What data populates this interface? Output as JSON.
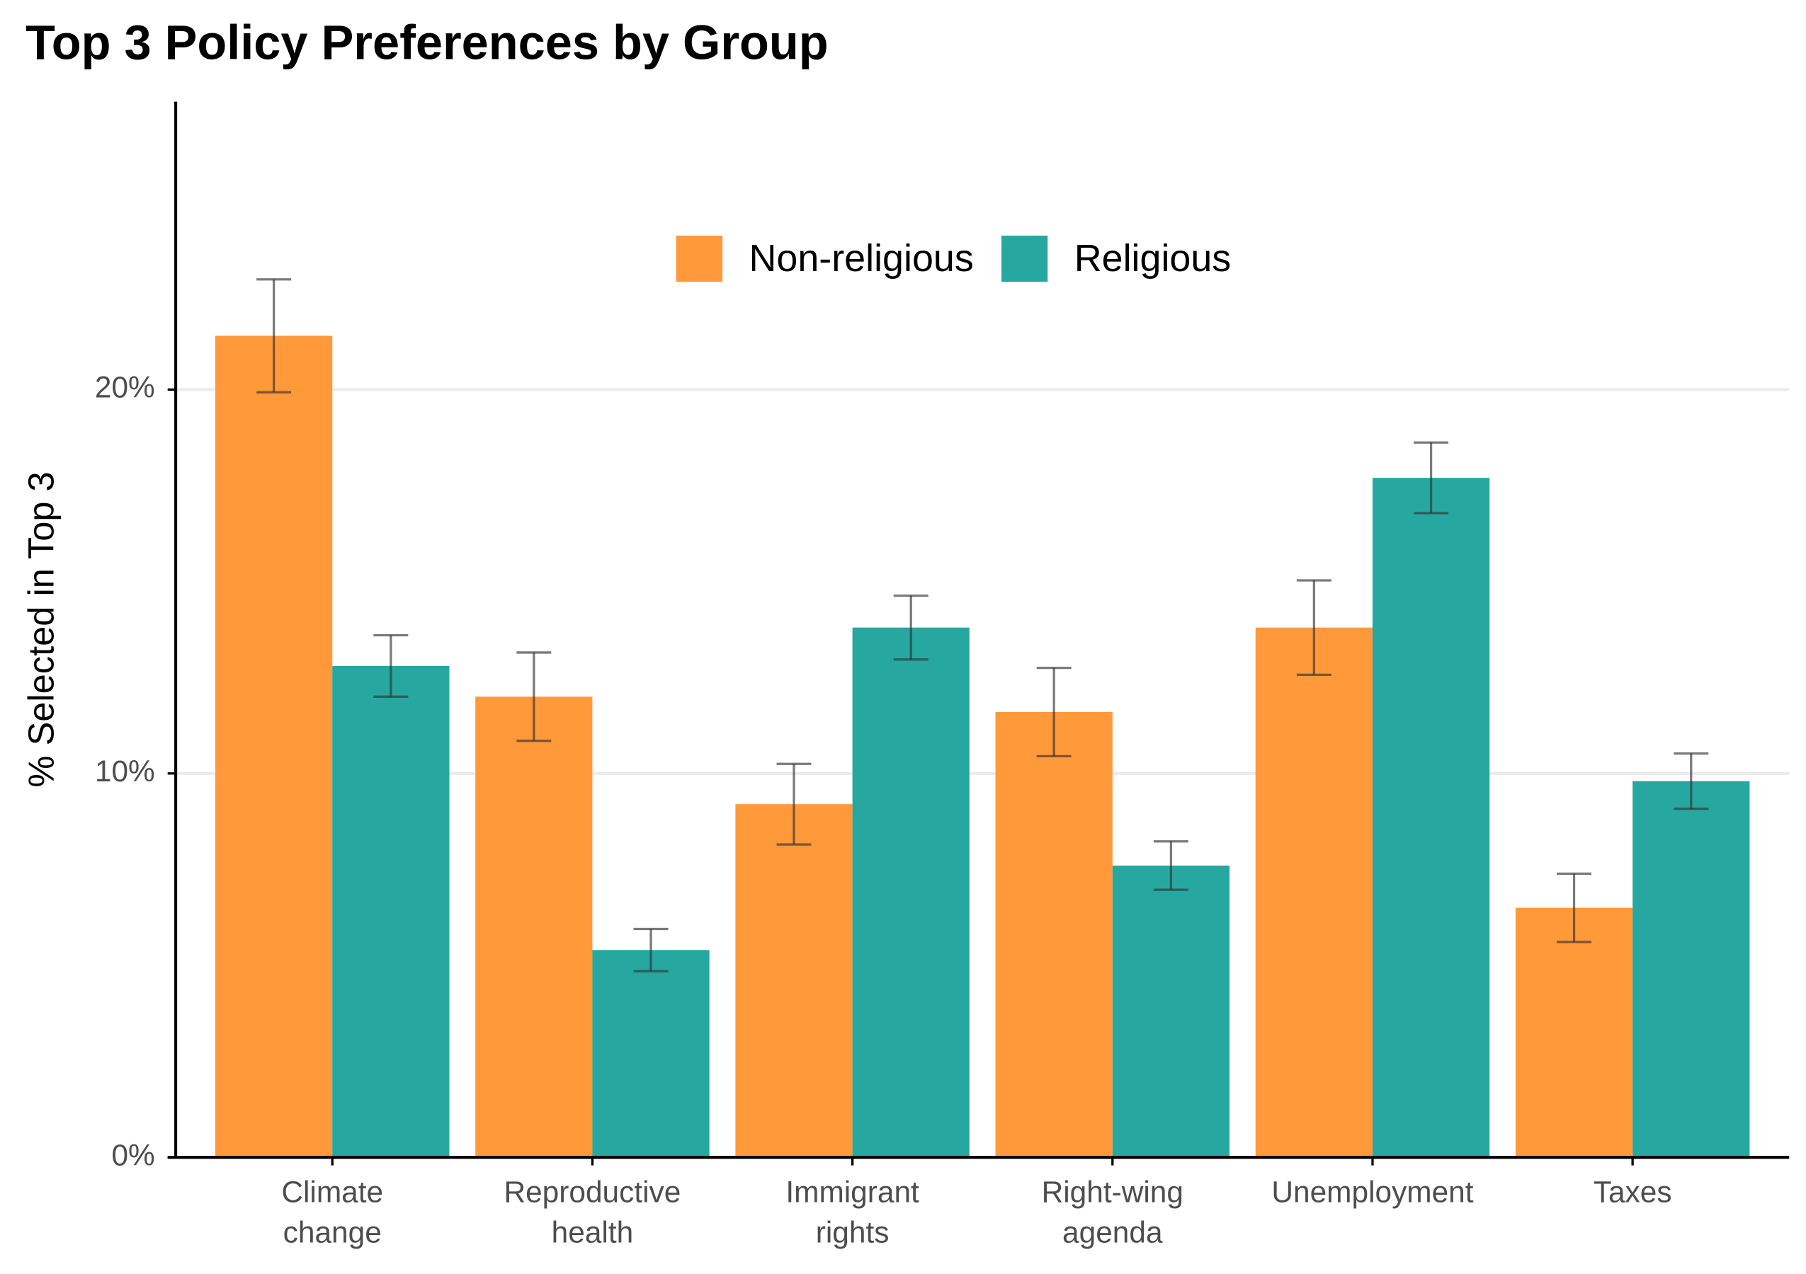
{
  "chart_data": {
    "type": "bar",
    "title": "Top 3 Policy Preferences by Group",
    "y_label": "% Selected in Top 3",
    "categories": [
      "Climate change",
      "Reproductive health",
      "Immigrant rights",
      "Right-wing agenda",
      "Unemployment",
      "Taxes"
    ],
    "series": [
      {
        "name": "Non-religious",
        "color": "#ff993a",
        "values": [
          21.4,
          12.0,
          9.2,
          11.6,
          13.8,
          6.5
        ],
        "errors": [
          1.47,
          1.15,
          1.05,
          1.15,
          1.23,
          0.89
        ]
      },
      {
        "name": "Religious",
        "color": "#26a8a0",
        "values": [
          12.8,
          5.4,
          13.8,
          7.6,
          17.7,
          9.8
        ],
        "errors": [
          0.8,
          0.55,
          0.83,
          0.63,
          0.92,
          0.72
        ]
      }
    ],
    "ylim": [
      0,
      27.5
    ],
    "yticks": [
      {
        "value": 0,
        "label": "0%"
      },
      {
        "value": 10,
        "label": "10%"
      },
      {
        "value": 20,
        "label": "20%"
      }
    ],
    "grid": true,
    "legend_position": "top"
  }
}
